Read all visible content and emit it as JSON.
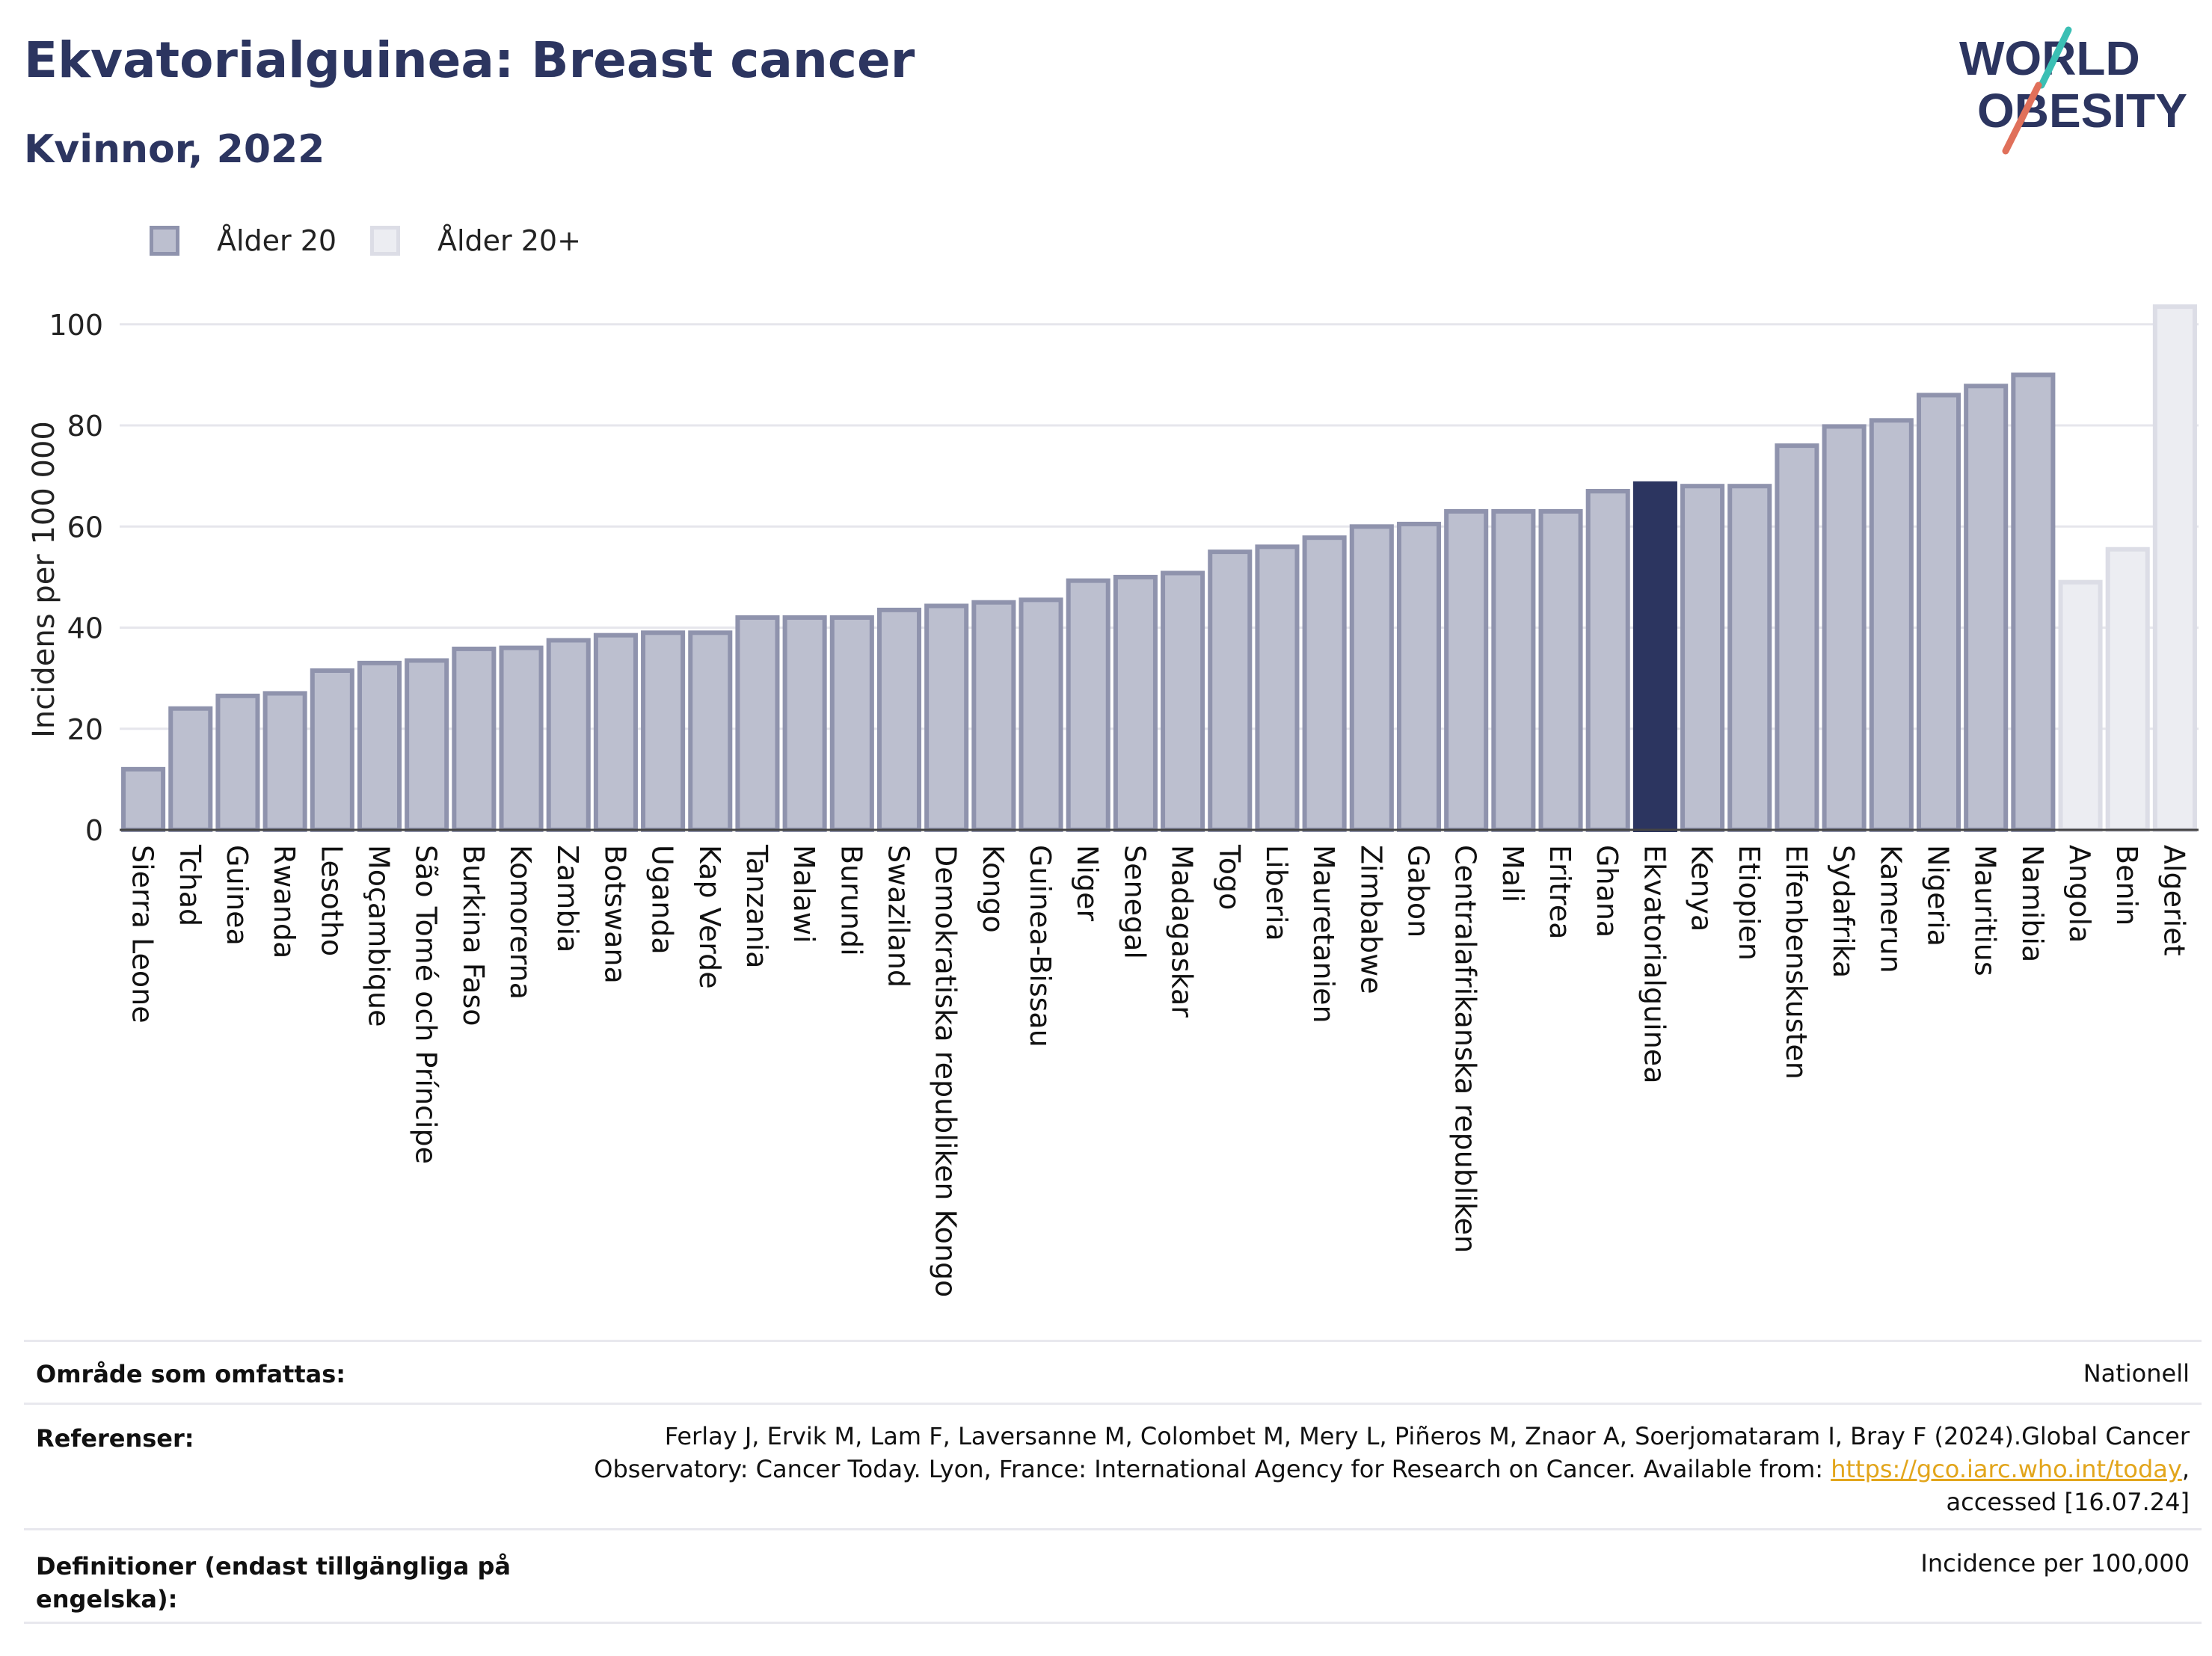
{
  "header": {
    "title": "Ekvatorialguinea: Breast cancer",
    "subtitle": "Kvinnor, 2022"
  },
  "logo": {
    "line1": "WORLD",
    "line2": "OBESITY",
    "accent_teal": "#3bbfb4",
    "accent_red": "#e0705a",
    "text_color": "#2c3560"
  },
  "legend": [
    {
      "label": "Ålder 20",
      "color": "#bcbfcf",
      "border": "#8f93ad"
    },
    {
      "label": "Ålder 20+",
      "color": "#ecedf2",
      "border": "#dcdde6"
    }
  ],
  "colors": {
    "highlight": "#2c3560",
    "primary": "#bcbfcf",
    "primary_border": "#8f93ad",
    "secondary": "#ecedf2",
    "secondary_border": "#dcdde6",
    "link": "#e2a51b"
  },
  "chart_data": {
    "type": "bar",
    "ylabel": "Incidens per 100 000",
    "ylim": [
      0,
      105
    ],
    "yticks": [
      0,
      20,
      40,
      60,
      80,
      100
    ],
    "grid": true,
    "highlight": "Ekvatorialguinea",
    "categories": [
      "Sierra Leone",
      "Tchad",
      "Guinea",
      "Rwanda",
      "Lesotho",
      "Moçambique",
      "São Tomé och Príncipe",
      "Burkina Faso",
      "Komorerna",
      "Zambia",
      "Botswana",
      "Uganda",
      "Kap Verde",
      "Tanzania",
      "Malawi",
      "Burundi",
      "Swaziland",
      "Demokratiska republiken Kongo",
      "Kongo",
      "Guinea-Bissau",
      "Niger",
      "Senegal",
      "Madagaskar",
      "Togo",
      "Liberia",
      "Mauretanien",
      "Zimbabwe",
      "Gabon",
      "Centralafrikanska republiken",
      "Mali",
      "Eritrea",
      "Ghana",
      "Ekvatorialguinea",
      "Kenya",
      "Etiopien",
      "Elfenbenskusten",
      "Sydafrika",
      "Kamerun",
      "Nigeria",
      "Mauritius",
      "Namibia",
      "Angola",
      "Benin",
      "Algeriet"
    ],
    "series": [
      {
        "name": "Ålder 20",
        "values": [
          12,
          24,
          26.5,
          27,
          31.5,
          33,
          33.5,
          35.8,
          36,
          37.5,
          38.5,
          39,
          39,
          42,
          42,
          42,
          43.5,
          44.3,
          45,
          45.5,
          49.3,
          50,
          50.8,
          55,
          56,
          57.8,
          60,
          60.5,
          63,
          63,
          63,
          67,
          68.5,
          68,
          68,
          76,
          79.8,
          81,
          86,
          87.8,
          90,
          null,
          null,
          null
        ]
      },
      {
        "name": "Ålder 20+",
        "values": [
          null,
          null,
          null,
          null,
          null,
          null,
          null,
          null,
          null,
          null,
          null,
          null,
          null,
          null,
          null,
          null,
          null,
          null,
          null,
          null,
          null,
          null,
          null,
          null,
          null,
          null,
          null,
          null,
          null,
          null,
          null,
          null,
          null,
          null,
          null,
          null,
          null,
          null,
          null,
          null,
          null,
          49,
          55.5,
          103.5
        ]
      }
    ]
  },
  "info": {
    "coverage_label": "Område som omfattas:",
    "coverage_value": "Nationell",
    "refs_label": "Referenser:",
    "refs_line1": "Ferlay J, Ervik M, Lam F, Laversanne M, Colombet M, Mery L, Piñeros M, Znaor A, Soerjomataram I, Bray F (2024).Global Cancer",
    "refs_line2_pre": "Observatory: Cancer Today. Lyon, France: International Agency for Research on Cancer. Available from: ",
    "refs_link": "https://gco.iarc.who.int/today",
    "refs_line2_post": ",",
    "refs_line3": "accessed [16.07.24]",
    "defs_label_1": "Definitioner (endast tillgängliga på",
    "defs_label_2": "engelska):",
    "defs_value": "Incidence per 100,000"
  }
}
